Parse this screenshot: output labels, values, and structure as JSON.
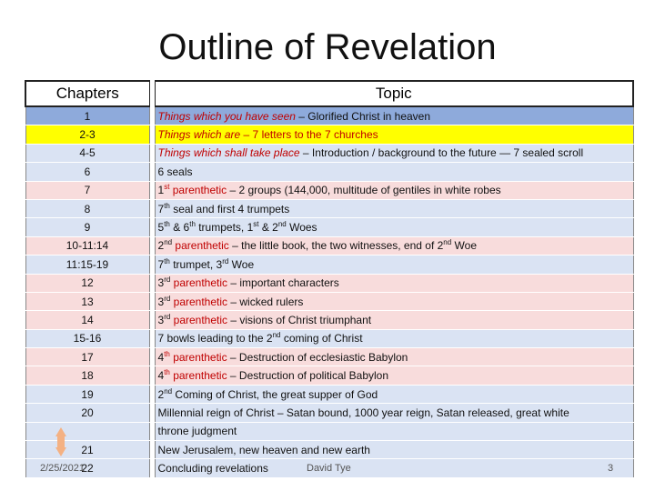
{
  "title": "Outline of Revelation",
  "headers": {
    "chapters": "Chapters",
    "topic": "Topic"
  },
  "rows": [
    {
      "ch": "1",
      "bg": "#8eaadb",
      "segs": [
        {
          "t": "Things which you have seen",
          "c": "red it"
        },
        {
          "t": " – Glorified Christ in heaven"
        }
      ]
    },
    {
      "ch": "2-3",
      "bg": "#ffff00",
      "segs": [
        {
          "t": "Things which are",
          "c": "red it"
        },
        {
          "t": " – 7 letters to the 7 churches",
          "c": "red"
        }
      ]
    },
    {
      "ch": "4-5",
      "bg": "#dae3f3",
      "segs": [
        {
          "t": "Things which shall take place",
          "c": "red it"
        },
        {
          "t": " –  Introduction / background to the future — 7 sealed scroll"
        }
      ]
    },
    {
      "ch": "6",
      "bg": "#dae3f3",
      "segs": [
        {
          "t": "6 seals"
        }
      ]
    },
    {
      "ch": "7",
      "bg": "#f8dcdc",
      "segs": [
        {
          "t": "1"
        },
        {
          "t": "st",
          "c": "red sup"
        },
        {
          "t": " parenthetic",
          "c": "red"
        },
        {
          "t": " – 2 groups (144,000, multitude of gentiles in white robes"
        }
      ]
    },
    {
      "ch": "8",
      "bg": "#dae3f3",
      "segs": [
        {
          "t": "7"
        },
        {
          "t": "th",
          "c": "sup"
        },
        {
          "t": " seal and first 4 trumpets"
        }
      ]
    },
    {
      "ch": "9",
      "bg": "#dae3f3",
      "segs": [
        {
          "t": "5"
        },
        {
          "t": "th",
          "c": "sup"
        },
        {
          "t": " & 6"
        },
        {
          "t": "th",
          "c": "sup"
        },
        {
          "t": " trumpets, 1"
        },
        {
          "t": "st",
          "c": "sup"
        },
        {
          "t": " & 2"
        },
        {
          "t": "nd",
          "c": "sup"
        },
        {
          "t": " Woes"
        }
      ]
    },
    {
      "ch": "10-11:14",
      "bg": "#f8dcdc",
      "segs": [
        {
          "t": "2"
        },
        {
          "t": "nd",
          "c": "sup"
        },
        {
          "t": " parenthetic",
          "c": "red"
        },
        {
          "t": " – the little book, the two witnesses, end of 2"
        },
        {
          "t": "nd",
          "c": "sup"
        },
        {
          "t": " Woe"
        }
      ]
    },
    {
      "ch": "11:15-19",
      "bg": "#dae3f3",
      "segs": [
        {
          "t": "7"
        },
        {
          "t": "th",
          "c": "sup"
        },
        {
          "t": " trumpet, 3"
        },
        {
          "t": "rd",
          "c": "sup"
        },
        {
          "t": " Woe"
        }
      ]
    },
    {
      "ch": "12",
      "bg": "#f8dcdc",
      "segs": [
        {
          "t": "3"
        },
        {
          "t": "rd",
          "c": "sup"
        },
        {
          "t": " parenthetic",
          "c": "red"
        },
        {
          "t": " – important characters"
        }
      ]
    },
    {
      "ch": "13",
      "bg": "#f8dcdc",
      "segs": [
        {
          "t": "3"
        },
        {
          "t": "rd",
          "c": "sup"
        },
        {
          "t": " parenthetic",
          "c": "red"
        },
        {
          "t": " – wicked rulers"
        }
      ]
    },
    {
      "ch": "14",
      "bg": "#f8dcdc",
      "segs": [
        {
          "t": "3"
        },
        {
          "t": "rd",
          "c": "sup"
        },
        {
          "t": " parenthetic",
          "c": "red"
        },
        {
          "t": " – visions of Christ triumphant"
        }
      ]
    },
    {
      "ch": "15-16",
      "bg": "#dae3f3",
      "segs": [
        {
          "t": "7 bowls leading to the 2"
        },
        {
          "t": "nd",
          "c": "sup"
        },
        {
          "t": " coming of Christ"
        }
      ]
    },
    {
      "ch": "17",
      "bg": "#f8dcdc",
      "segs": [
        {
          "t": "4"
        },
        {
          "t": "th",
          "c": "red sup"
        },
        {
          "t": " parenthetic",
          "c": "red"
        },
        {
          "t": "  – Destruction of ecclesiastic Babylon"
        }
      ]
    },
    {
      "ch": "18",
      "bg": "#f8dcdc",
      "segs": [
        {
          "t": "4"
        },
        {
          "t": "th",
          "c": "red sup"
        },
        {
          "t": " parenthetic",
          "c": "red"
        },
        {
          "t": "  – Destruction of political Babylon"
        }
      ]
    },
    {
      "ch": "19",
      "bg": "#dae3f3",
      "segs": [
        {
          "t": "2"
        },
        {
          "t": "nd",
          "c": "sup"
        },
        {
          "t": " Coming of Christ, the great supper of God"
        }
      ]
    },
    {
      "ch": "20",
      "bg": "#dae3f3",
      "segs": [
        {
          "t": "Millennial reign of Christ – Satan bound, 1000 year reign, Satan released, great white"
        }
      ]
    },
    {
      "ch": "",
      "bg": "#dae3f3",
      "segs": [
        {
          "t": "throne judgment"
        }
      ]
    },
    {
      "ch": "21",
      "bg": "#dae3f3",
      "segs": [
        {
          "t": "New Jerusalem, new heaven and new earth"
        }
      ]
    },
    {
      "ch": "22",
      "bg": "#dae3f3",
      "segs": [
        {
          "t": "Concluding revelations"
        }
      ]
    }
  ],
  "footer": {
    "date": "2/25/2021",
    "author": "David Tye",
    "page": "3"
  },
  "colors": {
    "drop_icon": "#f4b183"
  }
}
